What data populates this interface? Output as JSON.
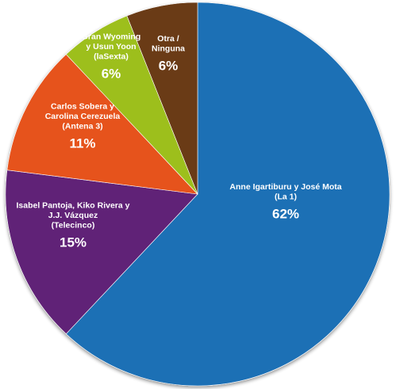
{
  "chart_data": {
    "type": "pie",
    "start_angle_deg": 0,
    "direction": "clockwise",
    "slices": [
      {
        "name_lines": [
          "Anne Igartiburu y José Mota",
          "(La 1)"
        ],
        "value": 62,
        "value_label": "62%",
        "color": "#1F6FB5"
      },
      {
        "name_lines": [
          "Isabel Pantoja, Kiko Rivera y",
          "J.J. Vázquez",
          "(Telecinco)"
        ],
        "value": 15,
        "value_label": "15%",
        "color": "#612477"
      },
      {
        "name_lines": [
          "Carlos Sobera y",
          "Carolina Cerezuela",
          "(Antena 3)"
        ],
        "value": 11,
        "value_label": "11%",
        "color": "#E6531E"
      },
      {
        "name_lines": [
          "Gran Wyoming",
          "y Usun Yoon",
          "(laSexta)"
        ],
        "value": 6,
        "value_label": "6%",
        "color": "#9DBF1B"
      },
      {
        "name_lines": [
          "Otra /",
          "Ninguna"
        ],
        "value": 6,
        "value_label": "6%",
        "color": "#6B3A16"
      }
    ]
  }
}
